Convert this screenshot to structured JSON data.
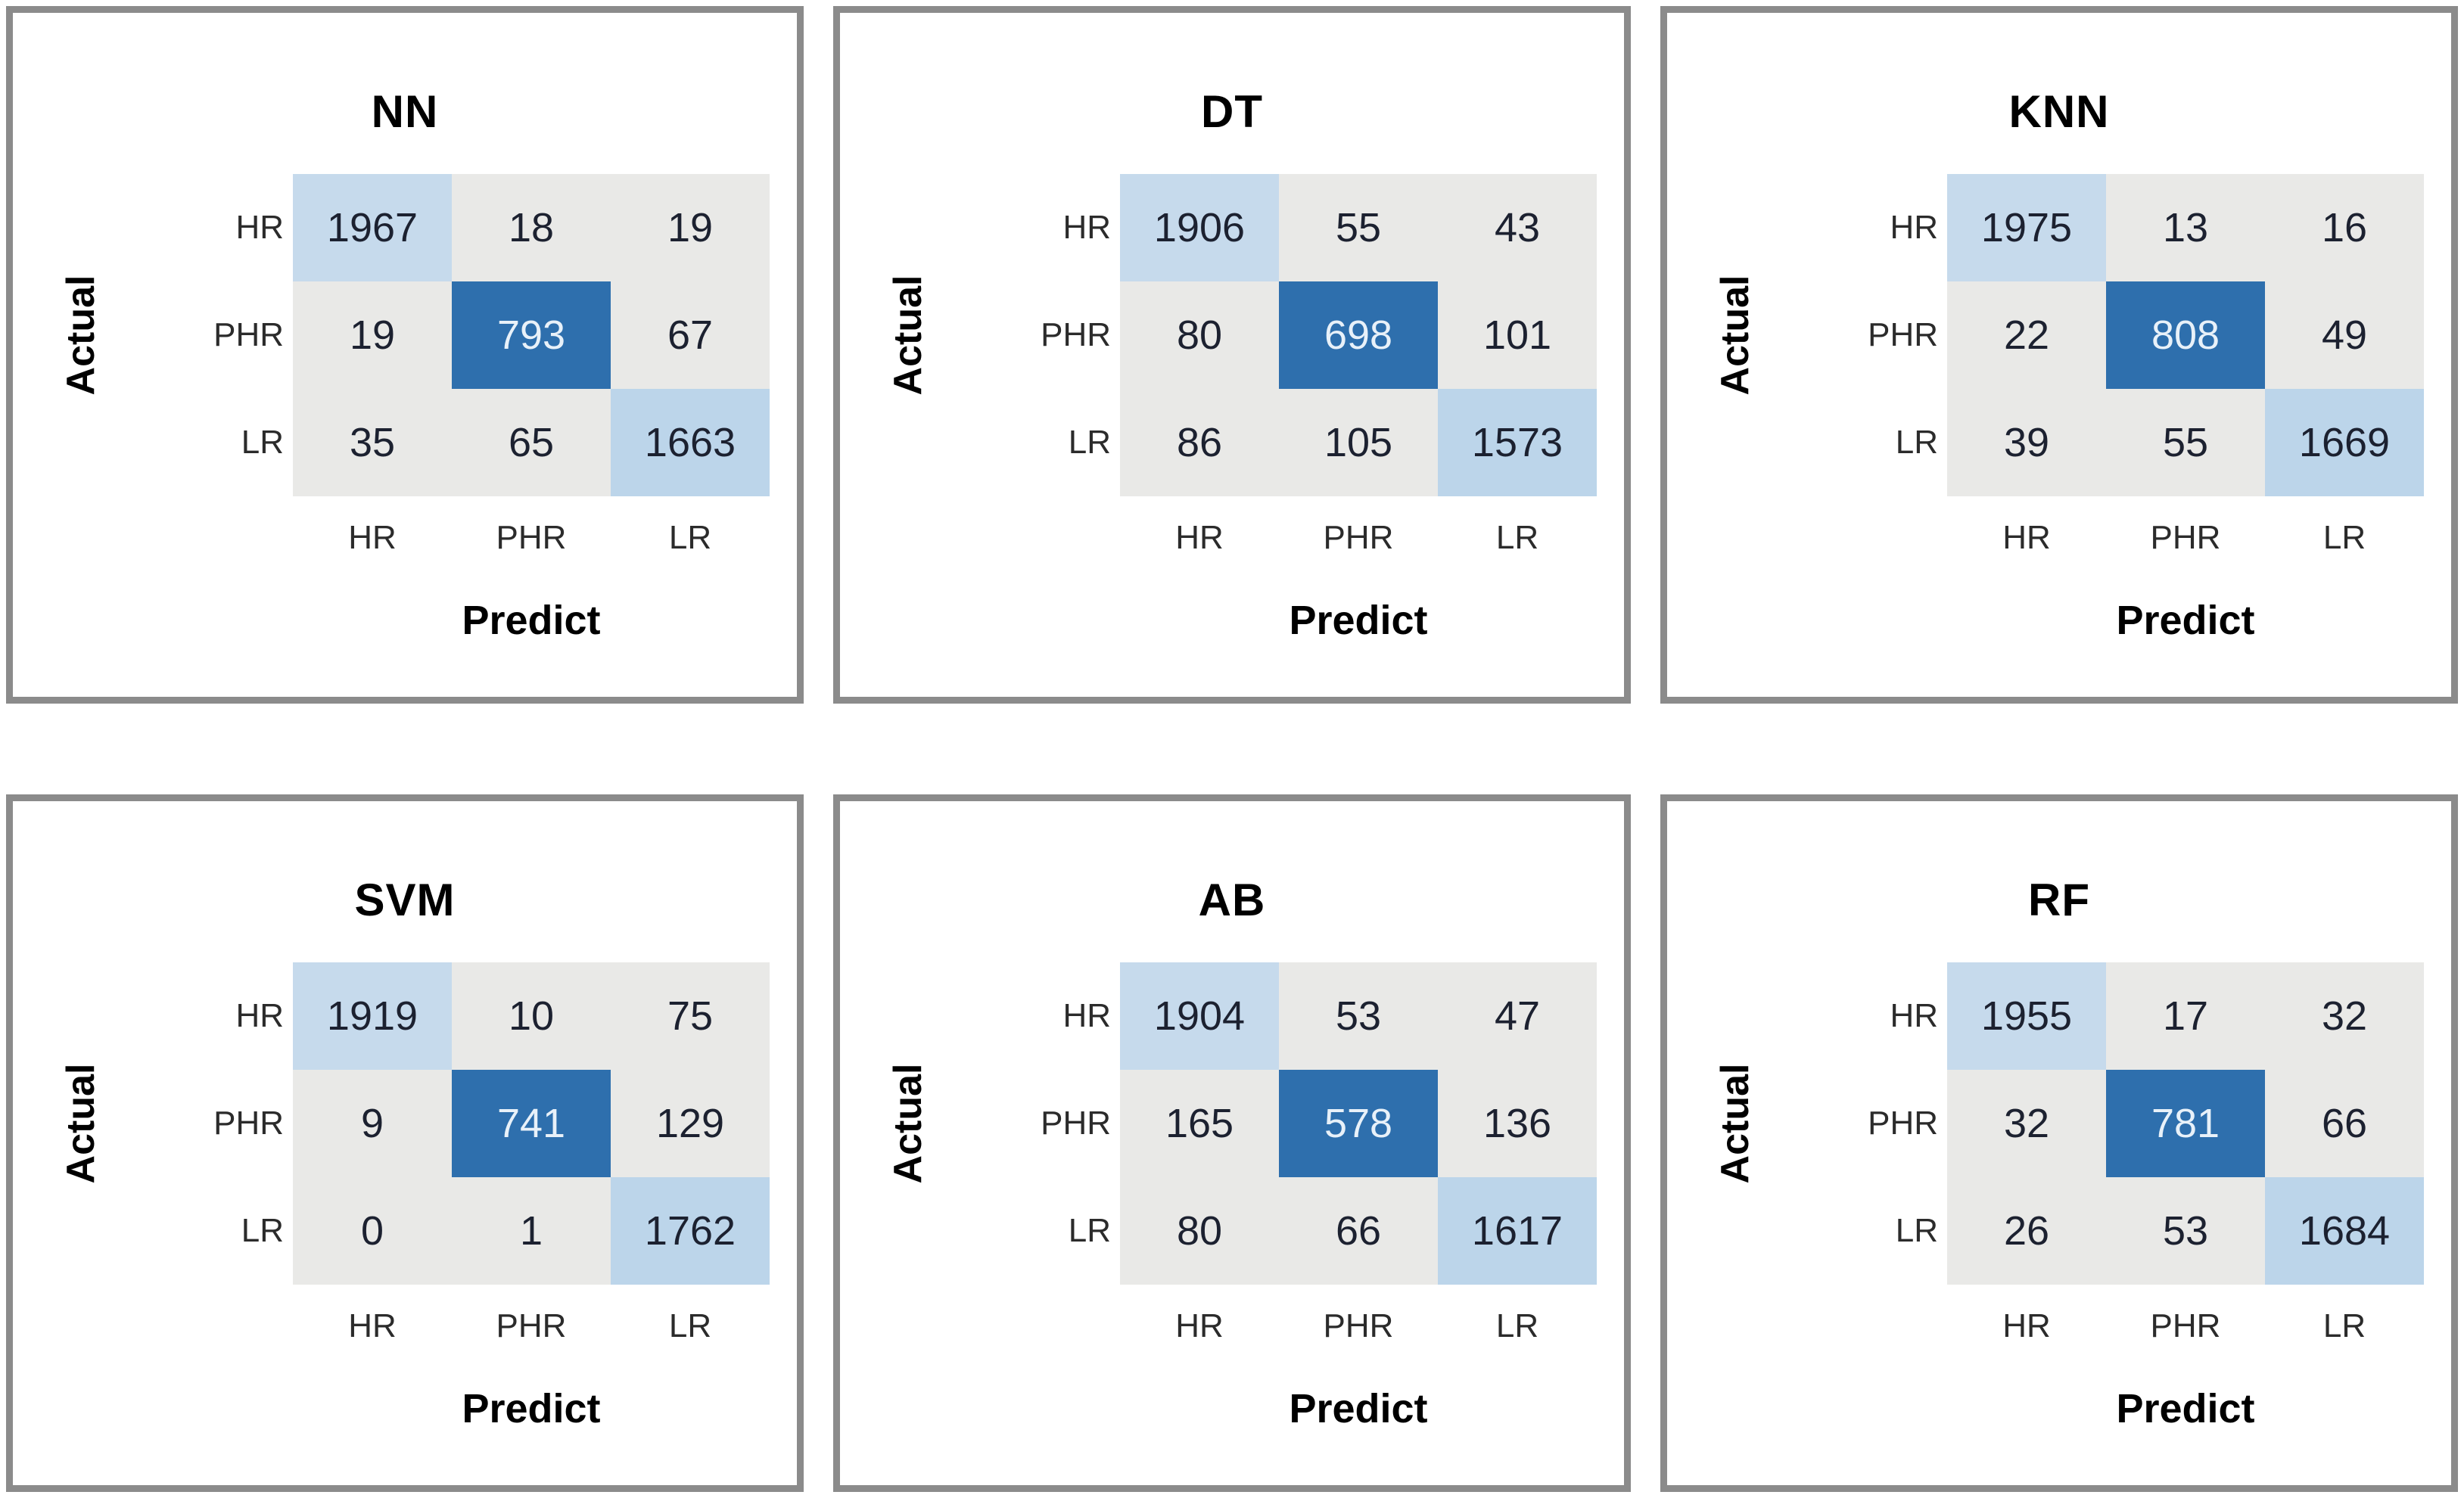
{
  "figure": {
    "type": "confusion-matrix-grid",
    "rows": 2,
    "cols": 3,
    "panel_order": [
      "NN",
      "DT",
      "KNN",
      "SVM",
      "AB",
      "RF"
    ]
  },
  "palette": {
    "panel_border": "#8B8B8B",
    "off_diagonal_cell": "#E9E9E7",
    "diagonal_cell_hr": "#C6DAEC",
    "diagonal_cell_phr": "#2E6FAD",
    "diagonal_cell_lr": "#BCD5EA",
    "number_text": "#1C2130",
    "number_text_on_dark": "#E8F1F9",
    "tick_label_text": "#2B2B2B",
    "axis_label_text": "#000000"
  },
  "axis_labels": {
    "y": "Actual",
    "x": "Predict"
  },
  "categories": [
    "HR",
    "PHR",
    "LR"
  ],
  "chart_data": [
    {
      "type": "heatmap",
      "title": "NN",
      "xlabel": "Predict",
      "ylabel": "Actual",
      "x_categories": [
        "HR",
        "PHR",
        "LR"
      ],
      "y_categories": [
        "HR",
        "PHR",
        "LR"
      ],
      "values": [
        [
          1967,
          18,
          19
        ],
        [
          19,
          793,
          67
        ],
        [
          35,
          65,
          1663
        ]
      ]
    },
    {
      "type": "heatmap",
      "title": "DT",
      "xlabel": "Predict",
      "ylabel": "Actual",
      "x_categories": [
        "HR",
        "PHR",
        "LR"
      ],
      "y_categories": [
        "HR",
        "PHR",
        "LR"
      ],
      "values": [
        [
          1906,
          55,
          43
        ],
        [
          80,
          698,
          101
        ],
        [
          86,
          105,
          1573
        ]
      ]
    },
    {
      "type": "heatmap",
      "title": "KNN",
      "xlabel": "Predict",
      "ylabel": "Actual",
      "x_categories": [
        "HR",
        "PHR",
        "LR"
      ],
      "y_categories": [
        "HR",
        "PHR",
        "LR"
      ],
      "values": [
        [
          1975,
          13,
          16
        ],
        [
          22,
          808,
          49
        ],
        [
          39,
          55,
          1669
        ]
      ]
    },
    {
      "type": "heatmap",
      "title": "SVM",
      "xlabel": "Predict",
      "ylabel": "Actual",
      "x_categories": [
        "HR",
        "PHR",
        "LR"
      ],
      "y_categories": [
        "HR",
        "PHR",
        "LR"
      ],
      "values": [
        [
          1919,
          10,
          75
        ],
        [
          9,
          741,
          129
        ],
        [
          0,
          1,
          1762
        ]
      ]
    },
    {
      "type": "heatmap",
      "title": "AB",
      "xlabel": "Predict",
      "ylabel": "Actual",
      "x_categories": [
        "HR",
        "PHR",
        "LR"
      ],
      "y_categories": [
        "HR",
        "PHR",
        "LR"
      ],
      "values": [
        [
          1904,
          53,
          47
        ],
        [
          165,
          578,
          136
        ],
        [
          80,
          66,
          1617
        ]
      ]
    },
    {
      "type": "heatmap",
      "title": "RF",
      "xlabel": "Predict",
      "ylabel": "Actual",
      "x_categories": [
        "HR",
        "PHR",
        "LR"
      ],
      "y_categories": [
        "HR",
        "PHR",
        "LR"
      ],
      "values": [
        [
          1955,
          17,
          32
        ],
        [
          32,
          781,
          66
        ],
        [
          26,
          53,
          1684
        ]
      ]
    }
  ]
}
